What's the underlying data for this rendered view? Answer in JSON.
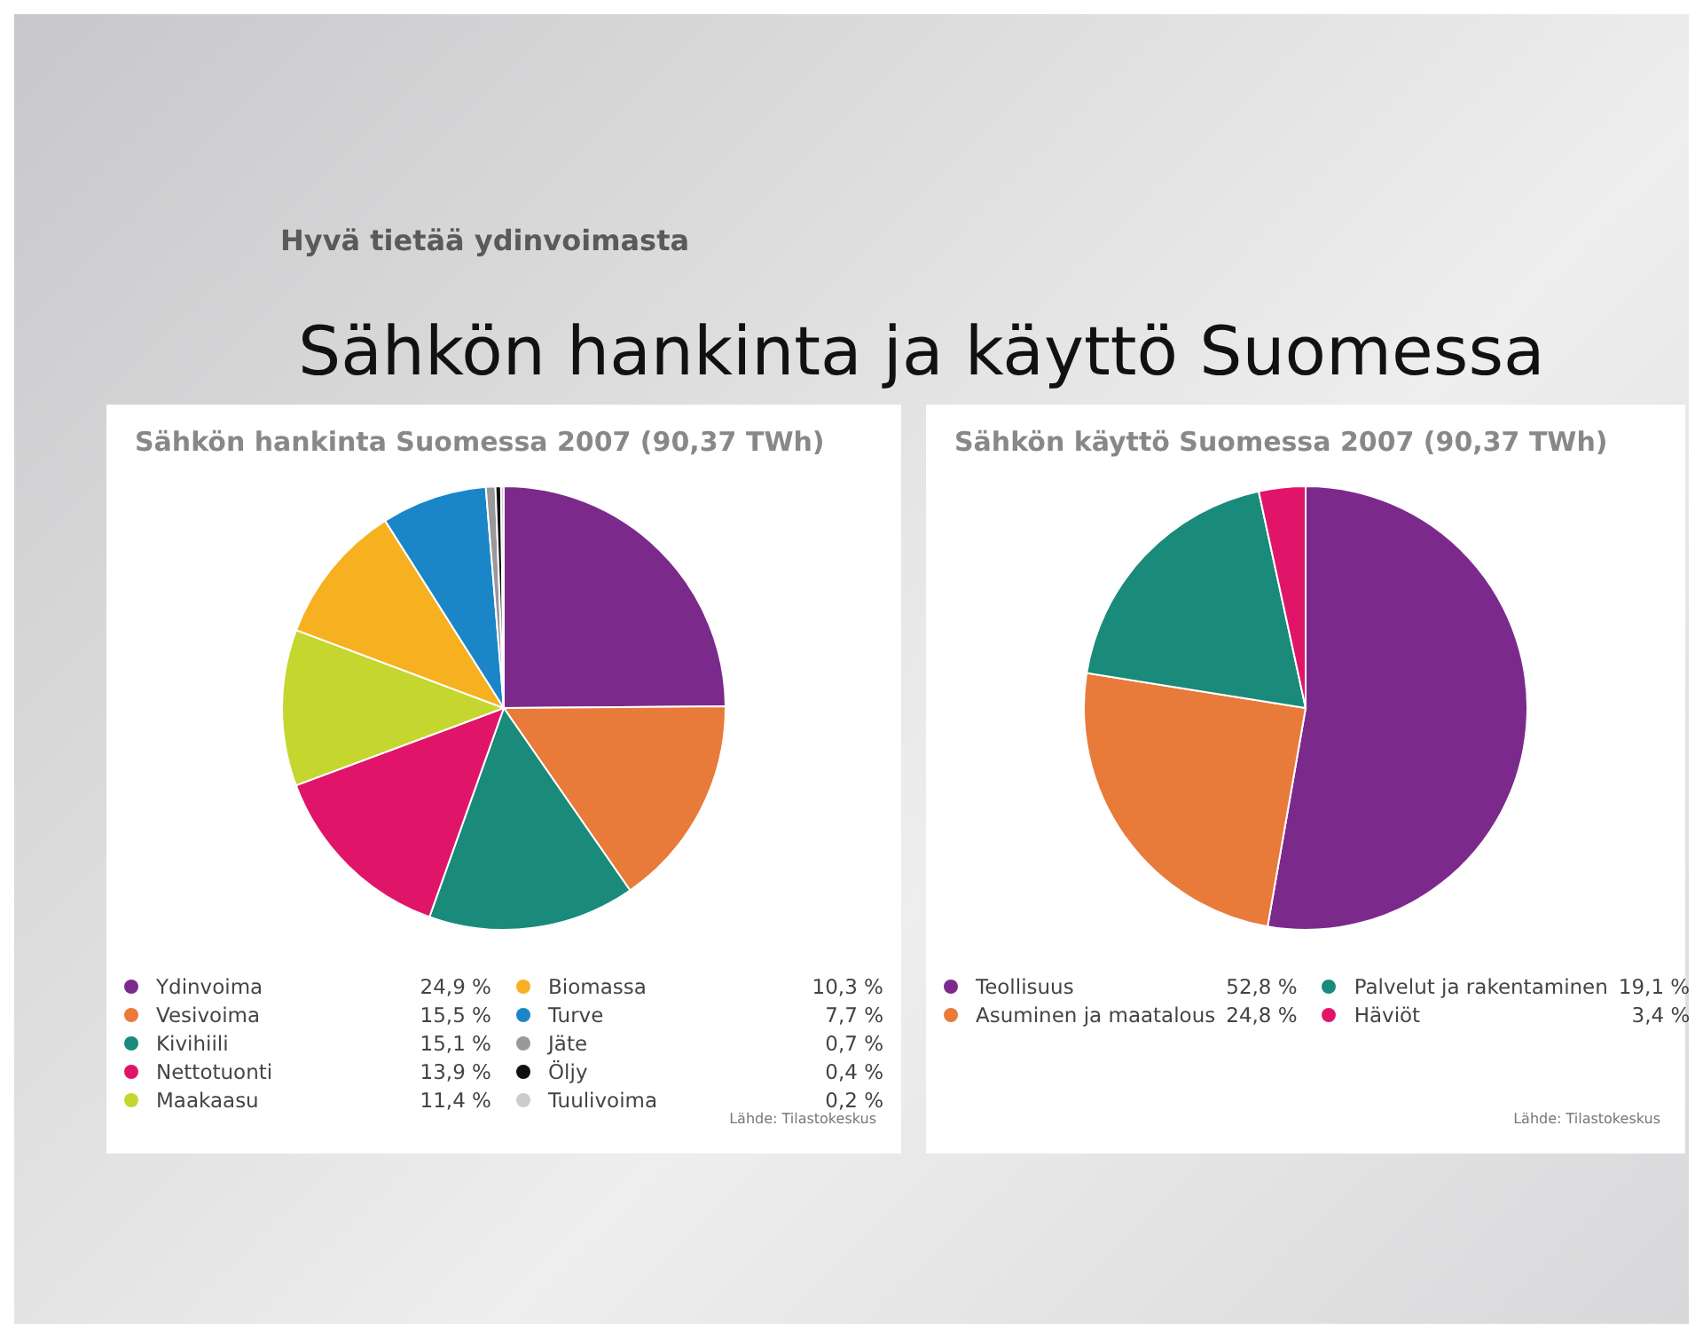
{
  "chart_data": [
    {
      "type": "pie",
      "title": "Sähkön hankinta Suomessa 2007 (90,37 TWh)",
      "categories": [
        "Ydinvoima",
        "Vesivoima",
        "Kivihiili",
        "Nettotuonti",
        "Maakaasu",
        "Biomassa",
        "Turve",
        "Jäte",
        "Öljy",
        "Tuulivoima"
      ],
      "values": [
        24.9,
        15.5,
        15.1,
        13.9,
        11.4,
        10.3,
        7.7,
        0.7,
        0.4,
        0.2
      ],
      "value_labels": [
        "24,9 %",
        "15,5 %",
        "15,1 %",
        "13,9 %",
        "11,4 %",
        "10,3 %",
        "7,7 %",
        "0,7 %",
        "0,4 %",
        "0,2 %"
      ],
      "colors": [
        "#7b2a8c",
        "#e87a3a",
        "#1a8a7a",
        "#e0156a",
        "#c5d62e",
        "#f7b020",
        "#1a86c8",
        "#999999",
        "#111111",
        "#cccccc"
      ],
      "legend": "bottom",
      "annotations": [
        "Hyvä tietää ydinvoimasta",
        "Sähkön hankinta ja käyttö Suomessa",
        "Lähde: Tilastokeskus"
      ]
    },
    {
      "type": "pie",
      "title": "Sähkön käyttö Suomessa 2007 (90,37 TWh)",
      "categories": [
        "Teollisuus",
        "Asuminen ja maatalous",
        "Palvelut ja rakentaminen",
        "Häviöt"
      ],
      "values": [
        52.8,
        24.8,
        19.1,
        3.4
      ],
      "value_labels": [
        "52,8 %",
        "24,8 %",
        "19,1 %",
        "3,4 %"
      ],
      "colors": [
        "#7b2a8c",
        "#e87a3a",
        "#1a8a7a",
        "#e0156a"
      ],
      "legend": "bottom",
      "annotations": [
        "Lähde: Tilastokeskus"
      ]
    }
  ]
}
